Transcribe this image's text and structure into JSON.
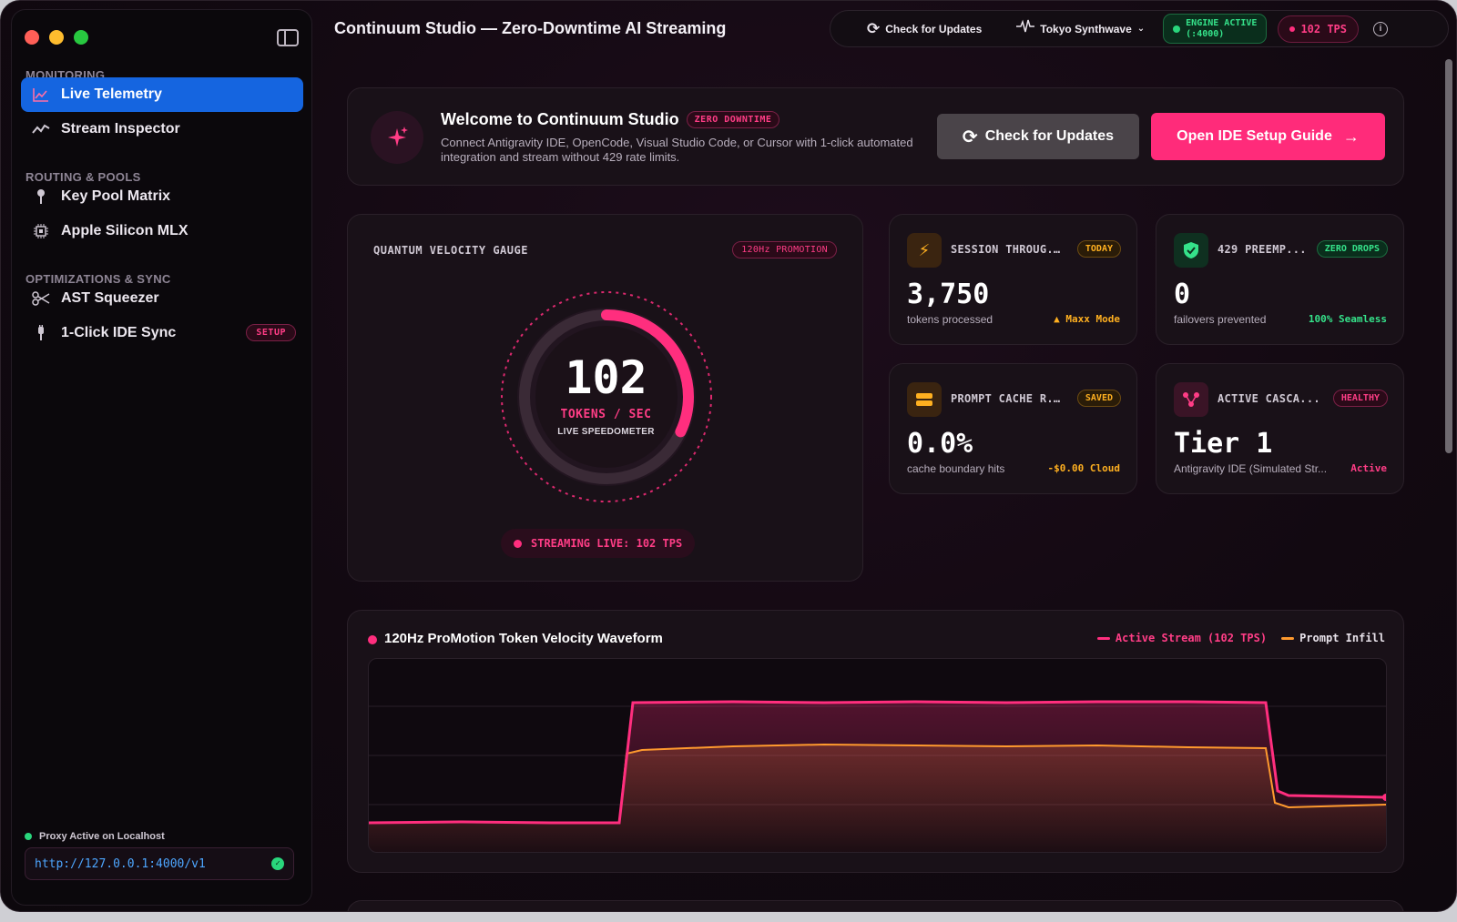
{
  "window": {
    "title": "Continuum Studio — Zero-Downtime AI Streaming"
  },
  "sidebar": {
    "sections": [
      {
        "label": "MONITORING"
      },
      {
        "label": "ROUTING & POOLS"
      },
      {
        "label": "OPTIMIZATIONS & SYNC"
      }
    ],
    "items": [
      {
        "label": "Live Telemetry",
        "icon": "chart-line-icon",
        "active": true
      },
      {
        "label": "Stream Inspector",
        "icon": "wave-icon"
      },
      {
        "label": "Key Pool Matrix",
        "icon": "key-icon"
      },
      {
        "label": "Apple Silicon MLX",
        "icon": "chip-icon"
      },
      {
        "label": "AST Squeezer",
        "icon": "scissors-icon"
      },
      {
        "label": "1-Click IDE Sync",
        "icon": "plug-icon",
        "badge": "SETUP"
      }
    ],
    "proxy_status": "Proxy Active on Localhost",
    "proxy_url": "http://127.0.0.1:4000/v1"
  },
  "toolbar": {
    "check_updates": "Check for Updates",
    "theme": "Tokyo Synthwave",
    "engine_status_line1": "ENGINE ACTIVE",
    "engine_status_line2": "(:4000)",
    "tps": "102 TPS"
  },
  "welcome": {
    "title": "Welcome to Continuum Studio",
    "badge": "ZERO DOWNTIME",
    "description": "Connect Antigravity IDE, OpenCode, Visual Studio Code, or Cursor with 1-click automated integration and stream without 429 rate limits.",
    "check_updates_label": "Check for Updates",
    "setup_guide_label": "Open IDE Setup Guide"
  },
  "gauge": {
    "title": "QUANTUM VELOCITY GAUGE",
    "badge": "120Hz PROMOTION",
    "value": "102",
    "unit": "TOKENS / SEC",
    "caption": "LIVE SPEEDOMETER",
    "fill_fraction": 0.32,
    "streaming_label": "STREAMING LIVE: 102 TPS"
  },
  "stats": [
    {
      "title": "SESSION THROUG...",
      "badge": "TODAY",
      "value": "3,750",
      "sub": "tokens processed",
      "right": "▲ Maxx Mode",
      "accent": "#ffb020",
      "icon": "bolt-icon"
    },
    {
      "title": "429 PREEMP...",
      "badge": "ZERO DROPS",
      "value": "0",
      "sub": "failovers prevented",
      "right": "100% Seamless",
      "accent": "#35e28a",
      "icon": "shield-icon"
    },
    {
      "title": "PROMPT CACHE R...",
      "badge": "SAVED",
      "value": "0.0%",
      "sub": "cache boundary hits",
      "right": "-$0.00 Cloud",
      "accent": "#ffb020",
      "icon": "database-icon"
    },
    {
      "title": "ACTIVE CASCA...",
      "badge": "HEALTHY",
      "value": "Tier 1",
      "sub": "Antigravity IDE (Simulated Str...",
      "right": "Active",
      "accent": "#ff3d86",
      "icon": "nodes-icon"
    }
  ],
  "waveform": {
    "title": "120Hz ProMotion Token Velocity Waveform",
    "legend": [
      {
        "label": "Active Stream (102 TPS)",
        "color": "#ff2e7e"
      },
      {
        "label": "Prompt Infill",
        "color": "#ff9a2e"
      }
    ]
  },
  "colors": {
    "accent_pink": "#ff2b7a",
    "accent_blue": "#1565e0",
    "accent_green": "#35e28a",
    "accent_orange": "#ffb020"
  }
}
